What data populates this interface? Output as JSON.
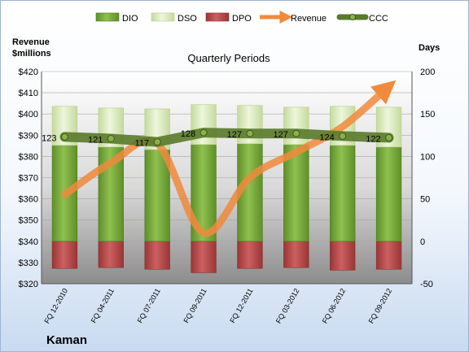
{
  "chart_data": {
    "type": "bar",
    "title": "Quarterly Periods",
    "company": "Kaman",
    "categories": [
      "FQ 12-2010",
      "FQ 04-2011",
      "FQ 07-2011",
      "FQ 09-2011",
      "FQ 12-2011",
      "FQ 03-2012",
      "FQ 06-2012",
      "FQ 09-2012"
    ],
    "left_axis": {
      "label_line1": "Revenue",
      "label_line2": "$millions",
      "range": [
        320,
        420
      ],
      "ticks": [
        "$320",
        "$330",
        "$340",
        "$350",
        "$360",
        "$370",
        "$380",
        "$390",
        "$400",
        "$410",
        "$420"
      ]
    },
    "right_axis": {
      "label": "Days",
      "range": [
        -50,
        200
      ],
      "ticks": [
        "-50",
        "0",
        "50",
        "100",
        "150",
        "200"
      ]
    },
    "legend": {
      "placement": "top",
      "items": [
        "DIO",
        "DSO",
        "DPO",
        "Revenue",
        "CCC"
      ]
    },
    "series": [
      {
        "name": "DIO",
        "axis": "right",
        "kind": "bar",
        "values": [
          113,
          111,
          108,
          114,
          115,
          114,
          113,
          111
        ]
      },
      {
        "name": "DSO",
        "axis": "right",
        "kind": "bar-stacked",
        "values": [
          46,
          46,
          48,
          47,
          45,
          44,
          46,
          47
        ]
      },
      {
        "name": "DPO",
        "axis": "right",
        "kind": "bar-negative",
        "values": [
          -32,
          -31,
          -33,
          -37,
          -32,
          -31,
          -34,
          -33
        ]
      },
      {
        "name": "Revenue",
        "axis": "left",
        "kind": "line",
        "values": [
          362,
          377,
          386,
          344,
          370,
          382,
          394,
          413
        ]
      },
      {
        "name": "CCC",
        "axis": "right",
        "kind": "line",
        "values": [
          123,
          121,
          117,
          128,
          127,
          127,
          124,
          122
        ]
      }
    ],
    "ccc_labels": [
      "123",
      "121",
      "117",
      "128",
      "127",
      "127",
      "124",
      "122"
    ],
    "colors": {
      "dio": "#77a83a",
      "dio_dark": "#4f7a1e",
      "dso": "#d8e8b8",
      "dso_dark": "#b8cf8c",
      "dpo": "#b84a4a",
      "dpo_dark": "#8a2f2f",
      "revenue": "#f08a3c",
      "ccc": "#5a7a2a",
      "ccc_marker": "#8cb04a"
    }
  }
}
